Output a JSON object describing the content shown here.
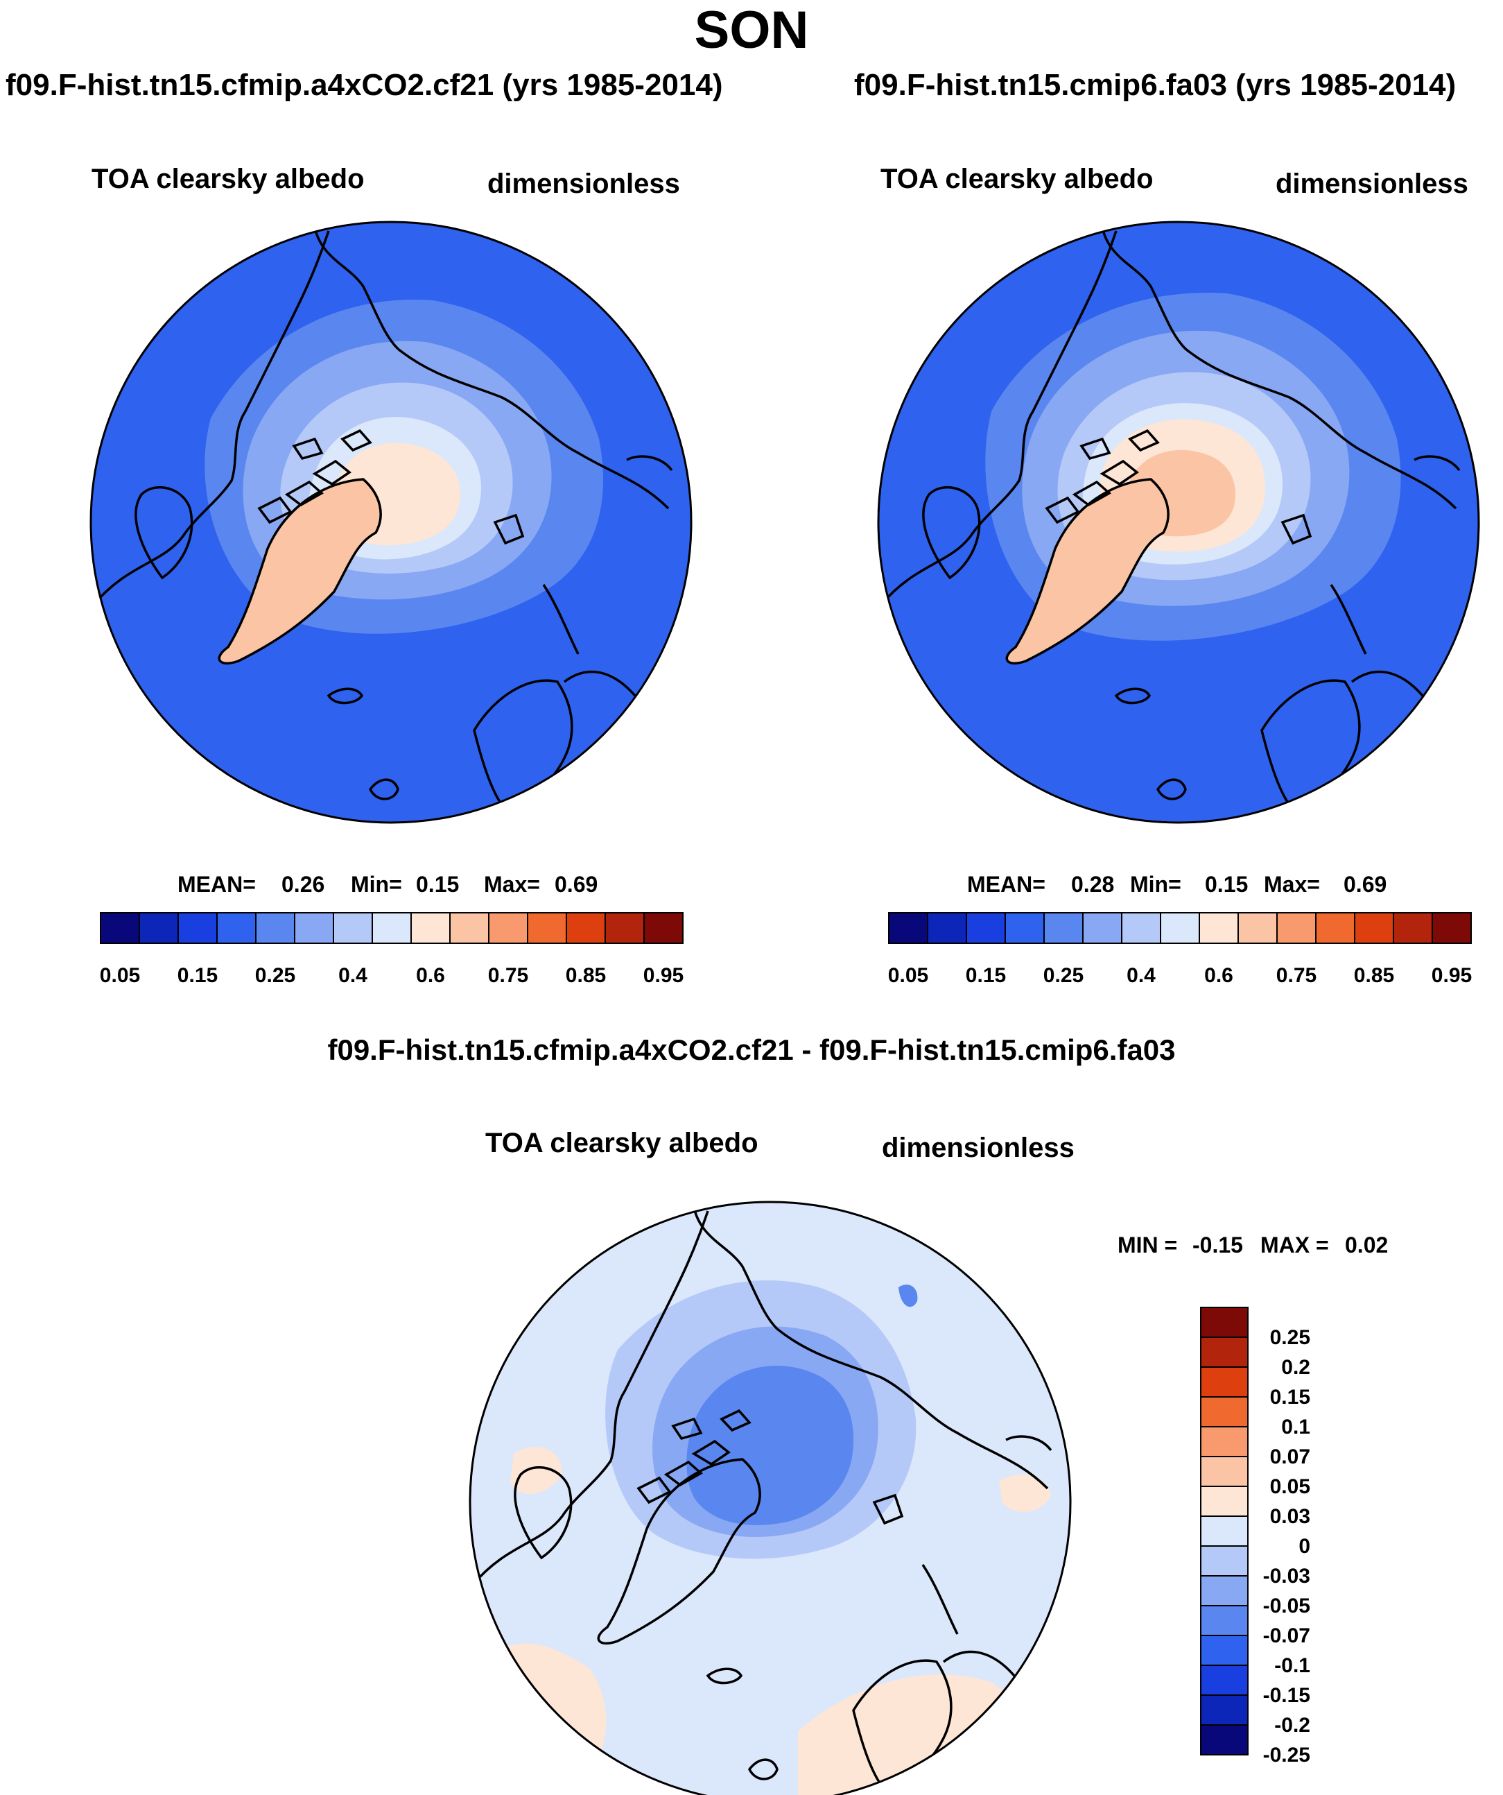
{
  "page": {
    "season": "SON"
  },
  "panels": [
    {
      "run_title": "f09.F-hist.tn15.cfmip.a4xCO2.cf21 (yrs 1985-2014)",
      "variable": "TOA clearsky albedo",
      "units": "dimensionless",
      "stats": {
        "mean_label": "MEAN=",
        "mean": "0.26",
        "min_label": "Min=",
        "min": "0.15",
        "max_label": "Max=",
        "max": "0.69"
      }
    },
    {
      "run_title": "f09.F-hist.tn15.cmip6.fa03 (yrs 1985-2014)",
      "variable": "TOA clearsky albedo",
      "units": "dimensionless",
      "stats": {
        "mean_label": "MEAN=",
        "mean": "0.28",
        "min_label": "Min=",
        "min": "0.15",
        "max_label": "Max=",
        "max": "0.69"
      }
    }
  ],
  "difference": {
    "title": "f09.F-hist.tn15.cfmip.a4xCO2.cf21 - f09.F-hist.tn15.cmip6.fa03",
    "variable": "TOA clearsky albedo",
    "units": "dimensionless",
    "minmax": {
      "min_label": "MIN =",
      "min": "-0.15",
      "max_label": "MAX =",
      "max": "0.02"
    }
  },
  "colorbars": {
    "absolute": {
      "colors": [
        "#08087a",
        "#0b26b9",
        "#1a3fe0",
        "#2f62ee",
        "#5a86f0",
        "#89a8f3",
        "#b5c9f8",
        "#dbe7fa",
        "#fde6d5",
        "#fbc4a5",
        "#f89a6e",
        "#f0692f",
        "#dd3f0f",
        "#b2250c",
        "#7d0a06"
      ],
      "labels": [
        "0.05",
        "0.15",
        "0.25",
        "0.4",
        "0.6",
        "0.75",
        "0.85",
        "0.95"
      ]
    },
    "difference": {
      "colors": [
        "#7d0a06",
        "#b2250c",
        "#dd3f0f",
        "#f0692f",
        "#f89a6e",
        "#fbc4a5",
        "#fde6d5",
        "#dbe7fa",
        "#b5c9f8",
        "#89a8f3",
        "#5a86f0",
        "#2f62ee",
        "#1a3fe0",
        "#0b26b9",
        "#08087a"
      ],
      "labels": [
        "0.25",
        "0.2",
        "0.15",
        "0.1",
        "0.07",
        "0.05",
        "0.03",
        "0",
        "-0.03",
        "-0.05",
        "-0.07",
        "-0.1",
        "-0.15",
        "-0.2",
        "-0.25"
      ]
    }
  },
  "map_colors": {
    "ocean_low": "#2f62ee",
    "ocean_mid": "#5a86f0",
    "land_mid": "#89a8f3",
    "ring_high": "#b5c9f8",
    "ring_higher": "#dbe7fa",
    "ice_center": "#fde6d5",
    "greenland": "#fbc4a5",
    "diff_base": "#dbe7fa",
    "diff_neg1": "#b5c9f8",
    "diff_neg2": "#89a8f3",
    "diff_neg3": "#5a86f0",
    "diff_pos": "#fde6d5"
  }
}
